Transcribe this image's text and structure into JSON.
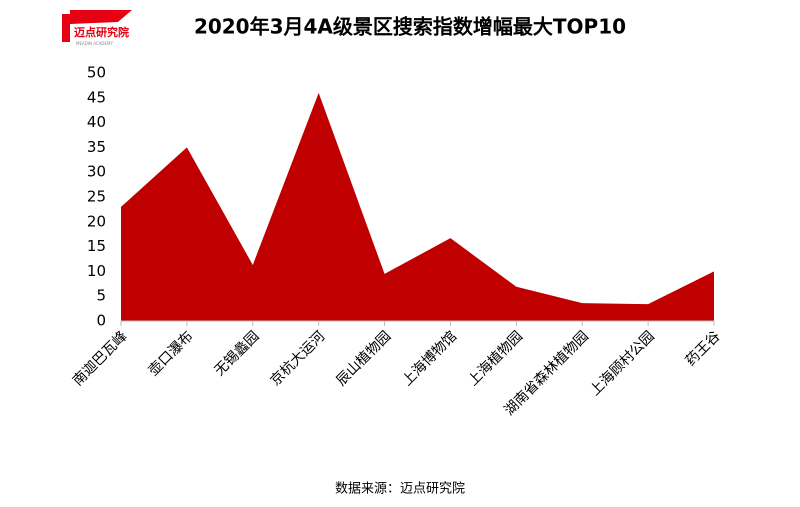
{
  "logo": {
    "name": "迈点研究院",
    "tagline": "MEADIN ACADEMY"
  },
  "chart_data": {
    "type": "area",
    "title": "2020年3月4A级景区搜索指数增幅最大TOP10",
    "categories": [
      "南迦巴瓦峰",
      "壶口瀑布",
      "无锡蠡园",
      "京杭大运河",
      "辰山植物园",
      "上海博物馆",
      "上海植物园",
      "湖南省森林植物园",
      "上海顾村公园",
      "药王谷"
    ],
    "values": [
      23,
      35,
      11.3,
      46,
      9.5,
      16.7,
      6.9,
      3.6,
      3.4,
      10
    ],
    "color": "#c00000",
    "ylim": [
      0,
      50
    ],
    "yticks": [
      0,
      5,
      10,
      15,
      20,
      25,
      30,
      35,
      40,
      45,
      50
    ],
    "grid": false,
    "source": "数据来源：迈点研究院"
  }
}
